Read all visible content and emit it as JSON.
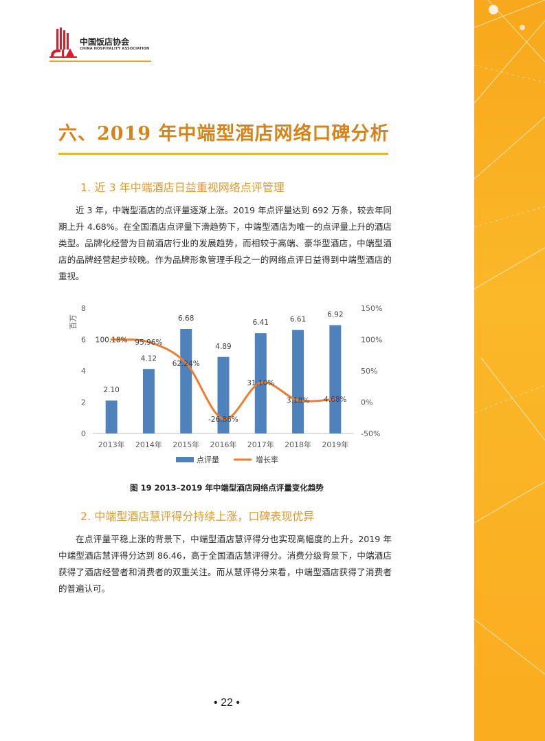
{
  "header": {
    "org_name_cn": "中国饭店协会",
    "org_name_en": "CHINA HOSPITALITY ASSOCIATION"
  },
  "section": {
    "title": "六、2019 年中端型酒店网络口碑分析"
  },
  "sub1": {
    "title": "1. 近 3 年中端酒店日益重视网络点评管理",
    "paragraph": "近 3 年，中端型酒店的点评量逐渐上涨。2019 年点评量达到 692 万条，较去年同期上升 4.68%。在全国酒店点评量下滑趋势下，中端型酒店为唯一的点评量上升的酒店类型。品牌化经营为目前酒店行业的发展趋势，而相较于高端、豪华型酒店，中端型酒店的品牌经营起步较晚。作为品牌形象管理手段之一的网络点评日益得到中端型酒店的重视。"
  },
  "figure": {
    "caption": "图 19   2013–2019 年中端型酒店网络点评量变化趋势"
  },
  "sub2": {
    "title": "2. 中端型酒店慧评得分持续上涨，口碑表现优异",
    "paragraph": "在点评量平稳上涨的背景下，中端型酒店慧评得分也实现高幅度的上升。2019 年中端型酒店慧评得分达到 86.46，高于全国酒店慧评得分。消费分级背景下，中端酒店获得了酒店经营者和消费者的双重关注。而从慧评得分来看，中端型酒店获得了消费者的普遍认可。"
  },
  "footer": {
    "page": "• 22 •"
  },
  "colors": {
    "accent": "#d4841a",
    "bar": "#4f81bd",
    "line": "#ed7d31",
    "band": "#f9ad1f"
  },
  "chart_data": {
    "type": "bar",
    "categories": [
      "2013年",
      "2014年",
      "2015年",
      "2016年",
      "2017年",
      "2018年",
      "2019年"
    ],
    "series": [
      {
        "name": "点评量",
        "type": "bar",
        "axis": "left",
        "values": [
          2.1,
          4.12,
          6.68,
          4.89,
          6.41,
          6.61,
          6.92
        ],
        "labels": [
          "2.10",
          "4.12",
          "6.68",
          "4.89",
          "6.41",
          "6.61",
          "6.92"
        ]
      },
      {
        "name": "增长率",
        "type": "line",
        "axis": "right",
        "values": [
          100.18,
          95.96,
          62.24,
          -26.86,
          31.1,
          3.18,
          4.68
        ],
        "labels": [
          "100.18%",
          "95.96%",
          "62.24%",
          "-26.86%",
          "31.10%",
          "3.18%",
          "4.68%"
        ]
      }
    ],
    "ylabel": "百万",
    "ylim": [
      0,
      8
    ],
    "yticks": [
      "0",
      "2",
      "4",
      "6",
      "8"
    ],
    "y2lim": [
      -50,
      150
    ],
    "y2ticks": [
      "-50%",
      "0%",
      "50%",
      "100%",
      "150%"
    ],
    "legend": "bottom"
  }
}
